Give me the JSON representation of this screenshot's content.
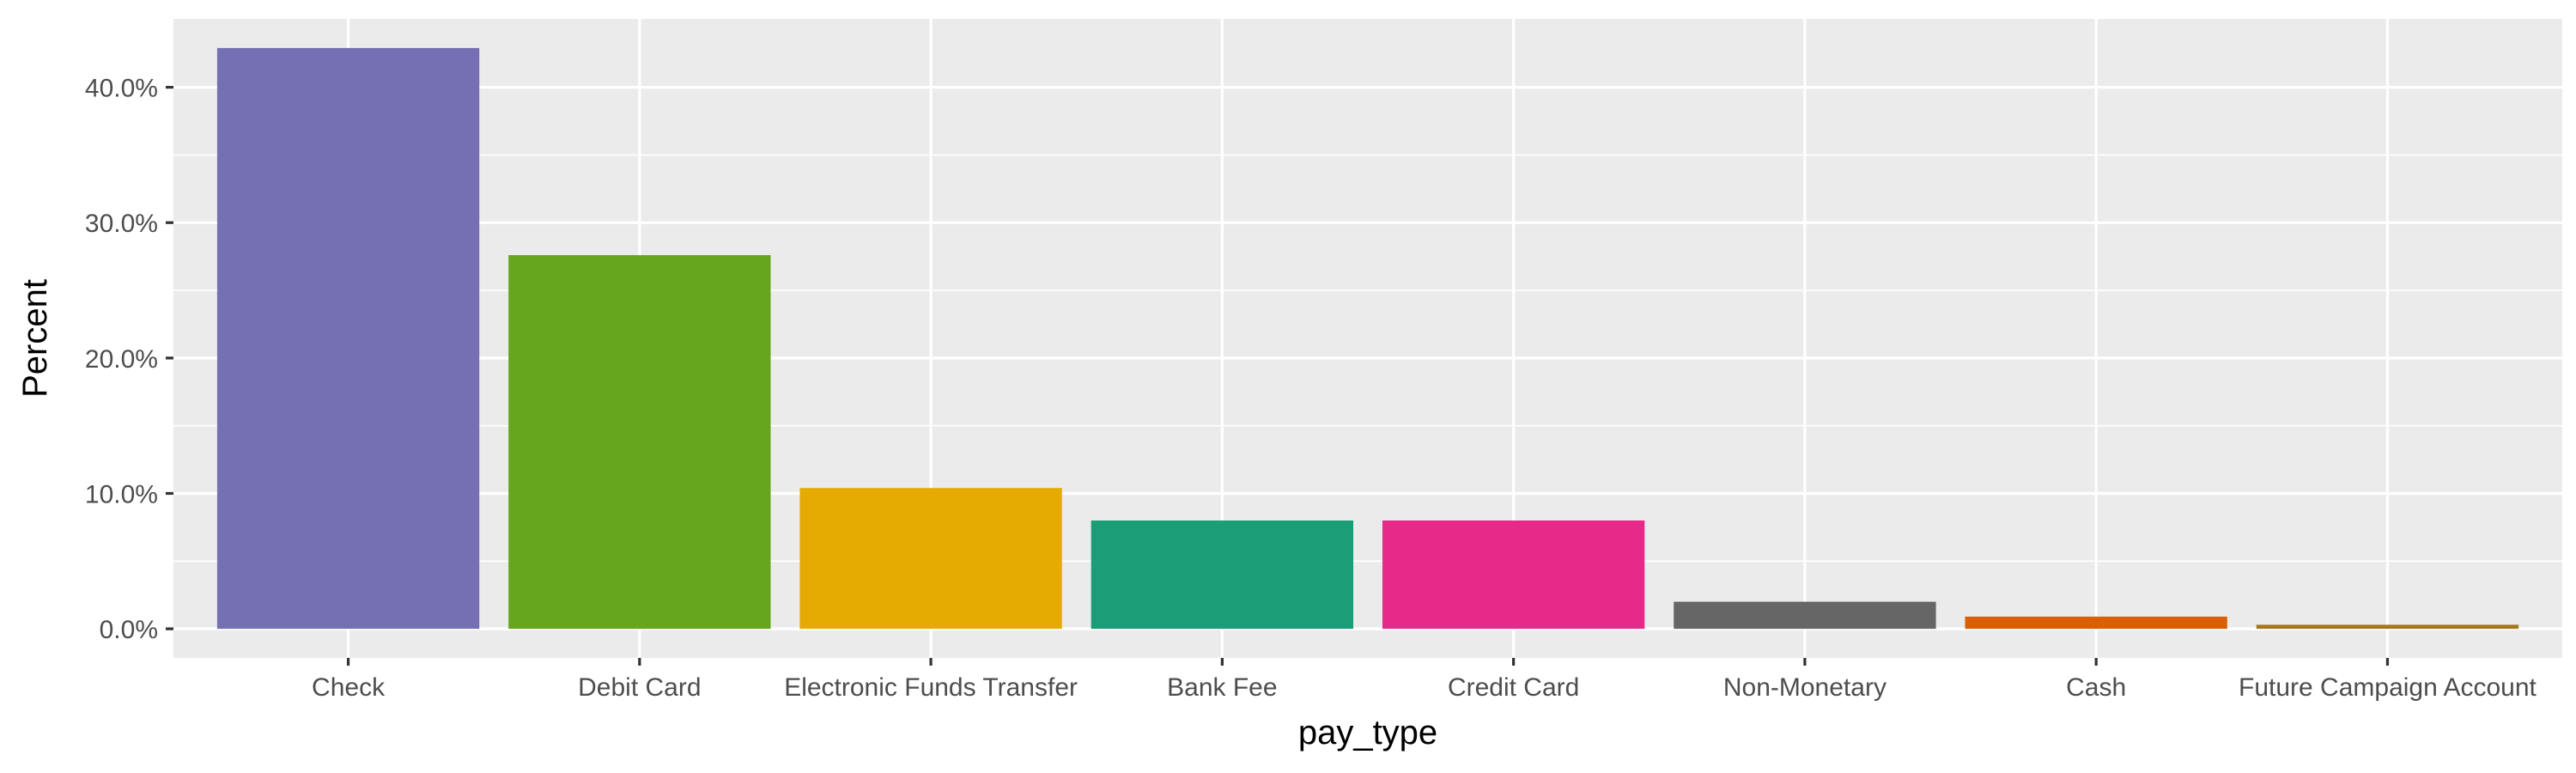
{
  "chart_data": {
    "type": "bar",
    "title": "",
    "xlabel": "pay_type",
    "ylabel": "Percent",
    "categories": [
      "Check",
      "Debit Card",
      "Electronic Funds Transfer",
      "Bank Fee",
      "Credit Card",
      "Non-Monetary",
      "Cash",
      "Future Campaign Account"
    ],
    "values": [
      42.9,
      27.6,
      10.4,
      8.0,
      8.0,
      2.0,
      0.9,
      0.3
    ],
    "colors": [
      "#7570B3",
      "#66A61E",
      "#E6AB02",
      "#1B9E77",
      "#E7298A",
      "#666666",
      "#D95F02",
      "#A6761D"
    ],
    "yticks": [
      0,
      10,
      20,
      30,
      40
    ],
    "ytick_labels": [
      "0.0%",
      "10.0%",
      "20.0%",
      "30.0%",
      "40.0%"
    ],
    "ylim": [
      -2.15,
      45.05
    ],
    "grid": true,
    "legend": "none",
    "panel_background": "#EBEBEB",
    "grid_color": "#FFFFFF"
  }
}
